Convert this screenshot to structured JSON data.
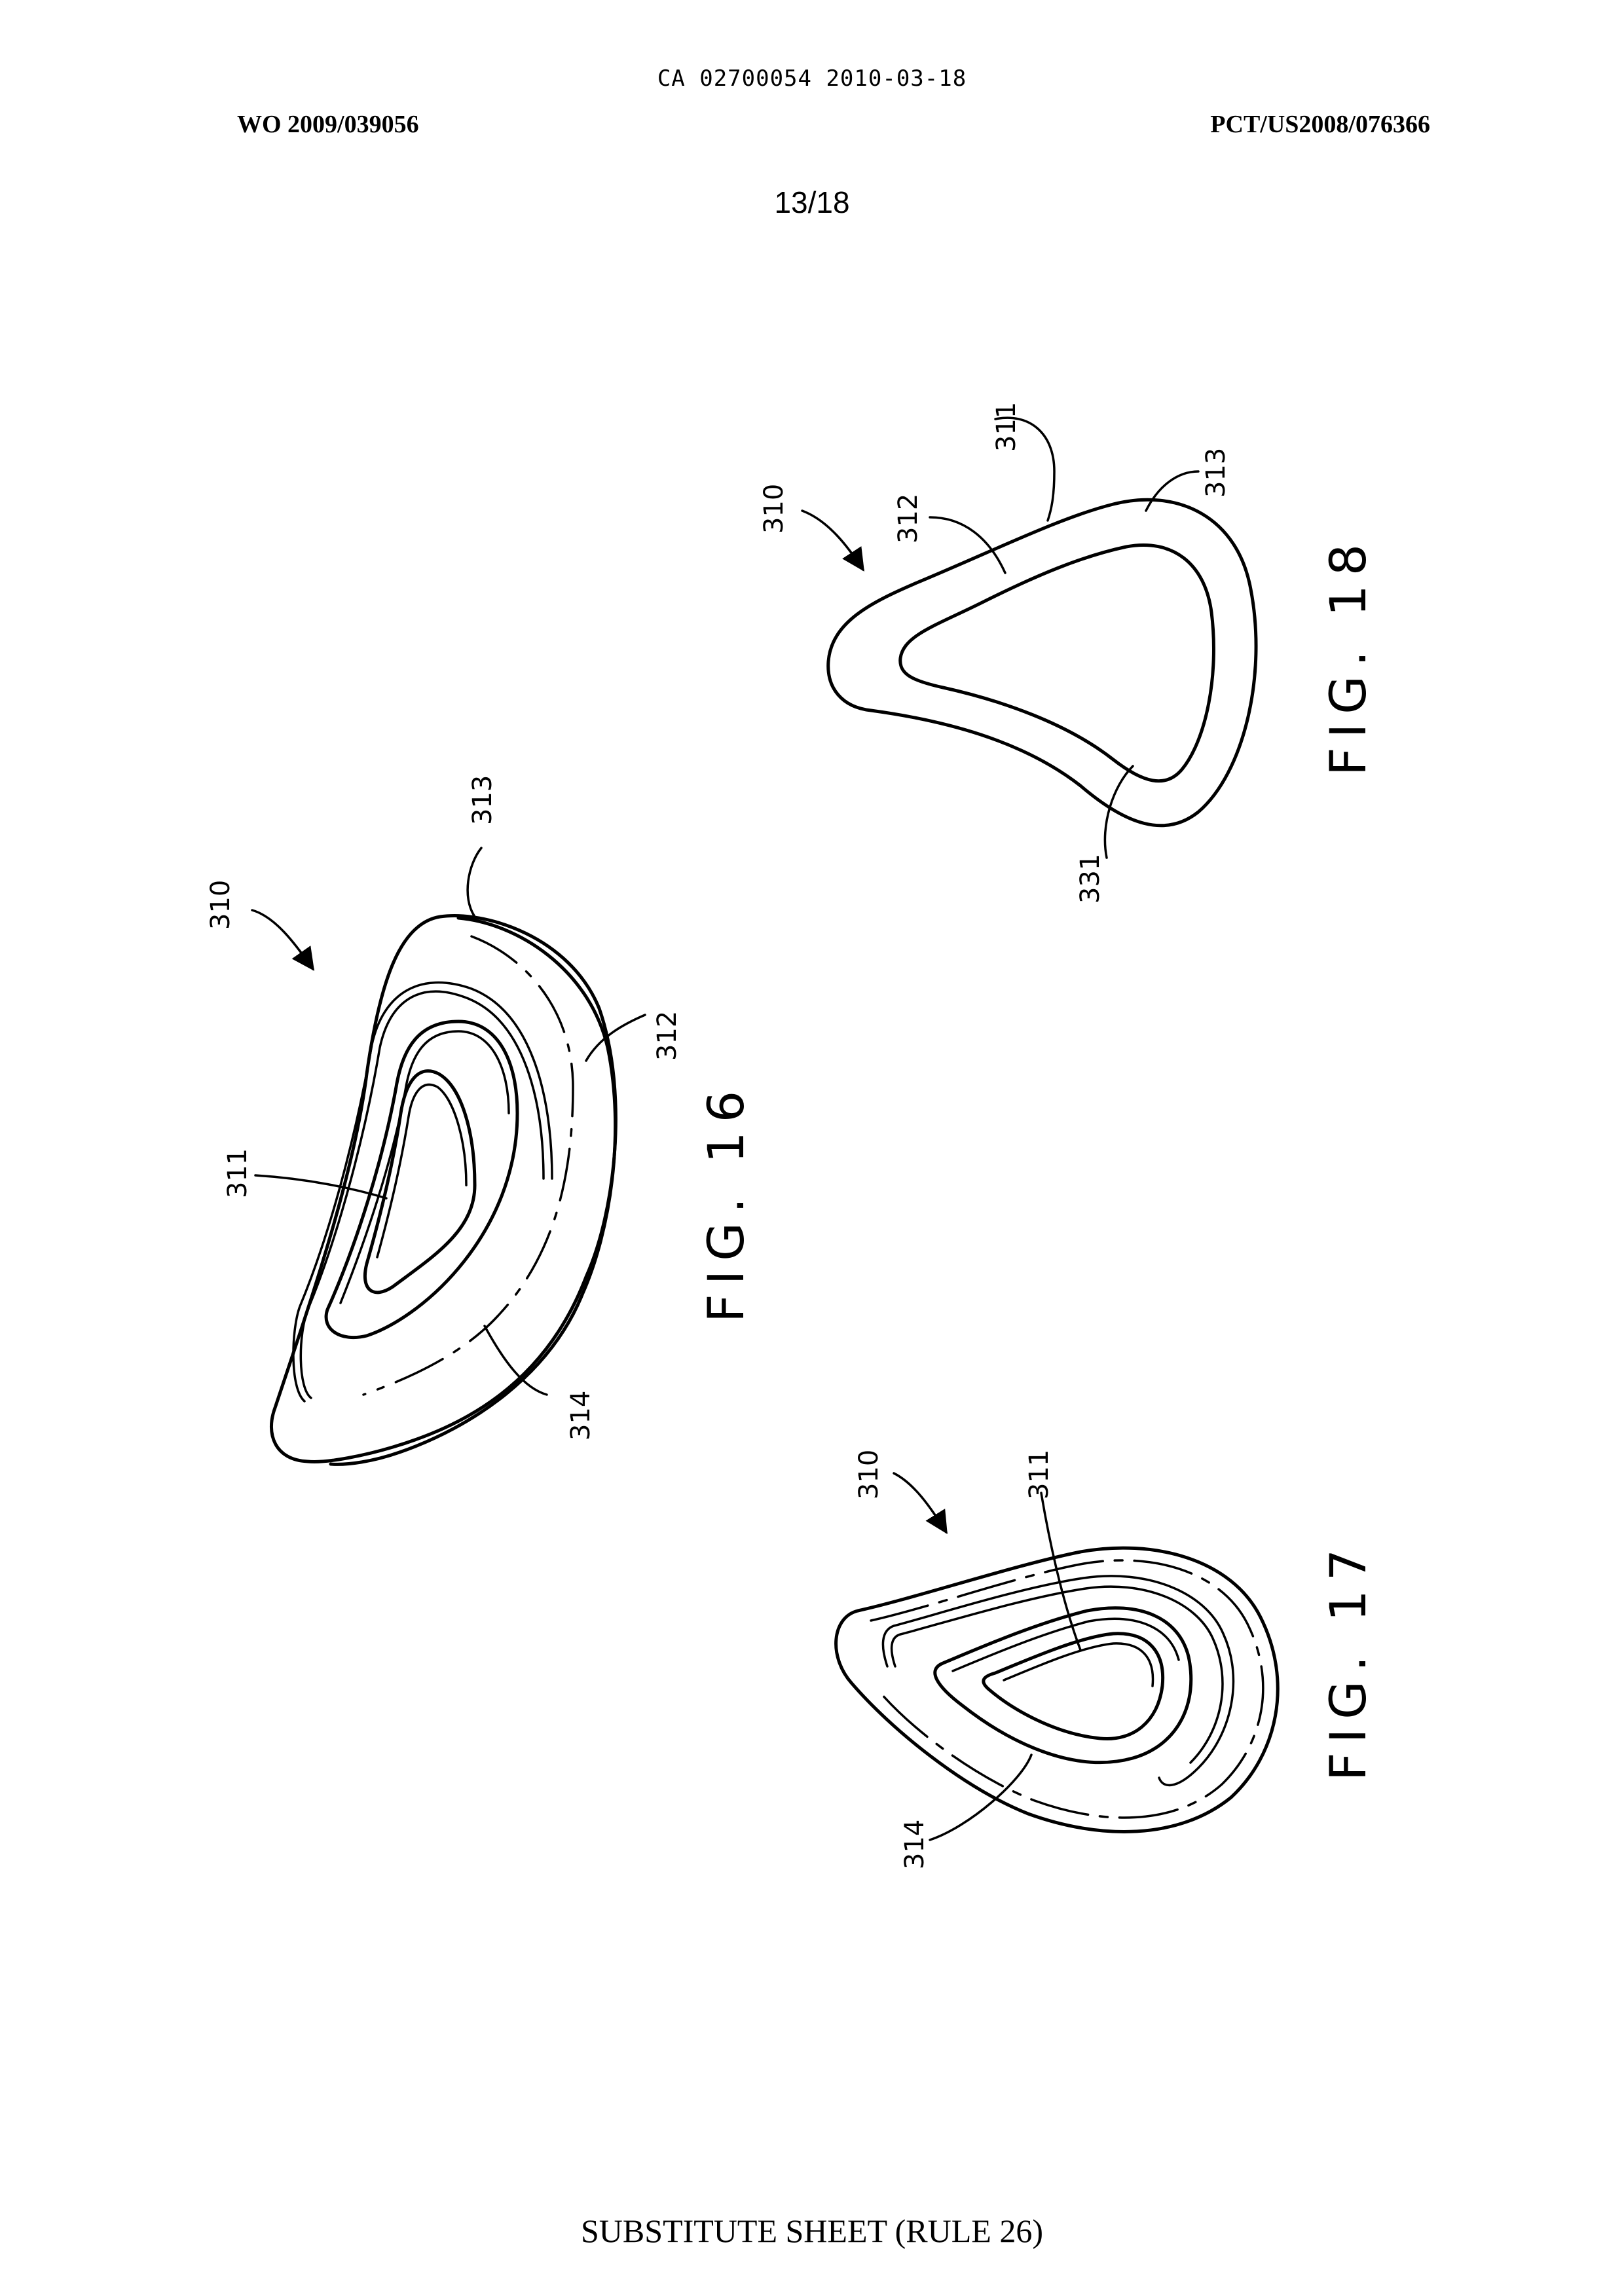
{
  "header": {
    "ca_line": "CA 02700054 2010-03-18",
    "wo_number": "WO 2009/039056",
    "pct_number": "PCT/US2008/076366",
    "sheet_number": "13/18"
  },
  "figures": [
    {
      "label": "FIG. 16",
      "refs": {
        "r310": "310",
        "r313": "313",
        "r312": "312",
        "r311": "311",
        "r314": "314"
      }
    },
    {
      "label": "FIG. 17",
      "refs": {
        "r310": "310",
        "r311": "311",
        "r314": "314"
      }
    },
    {
      "label": "FIG. 18",
      "refs": {
        "r310": "310",
        "r311": "311",
        "r313": "313",
        "r312": "312",
        "r331": "331"
      }
    }
  ],
  "footer": {
    "text": "SUBSTITUTE SHEET (RULE 26)"
  }
}
